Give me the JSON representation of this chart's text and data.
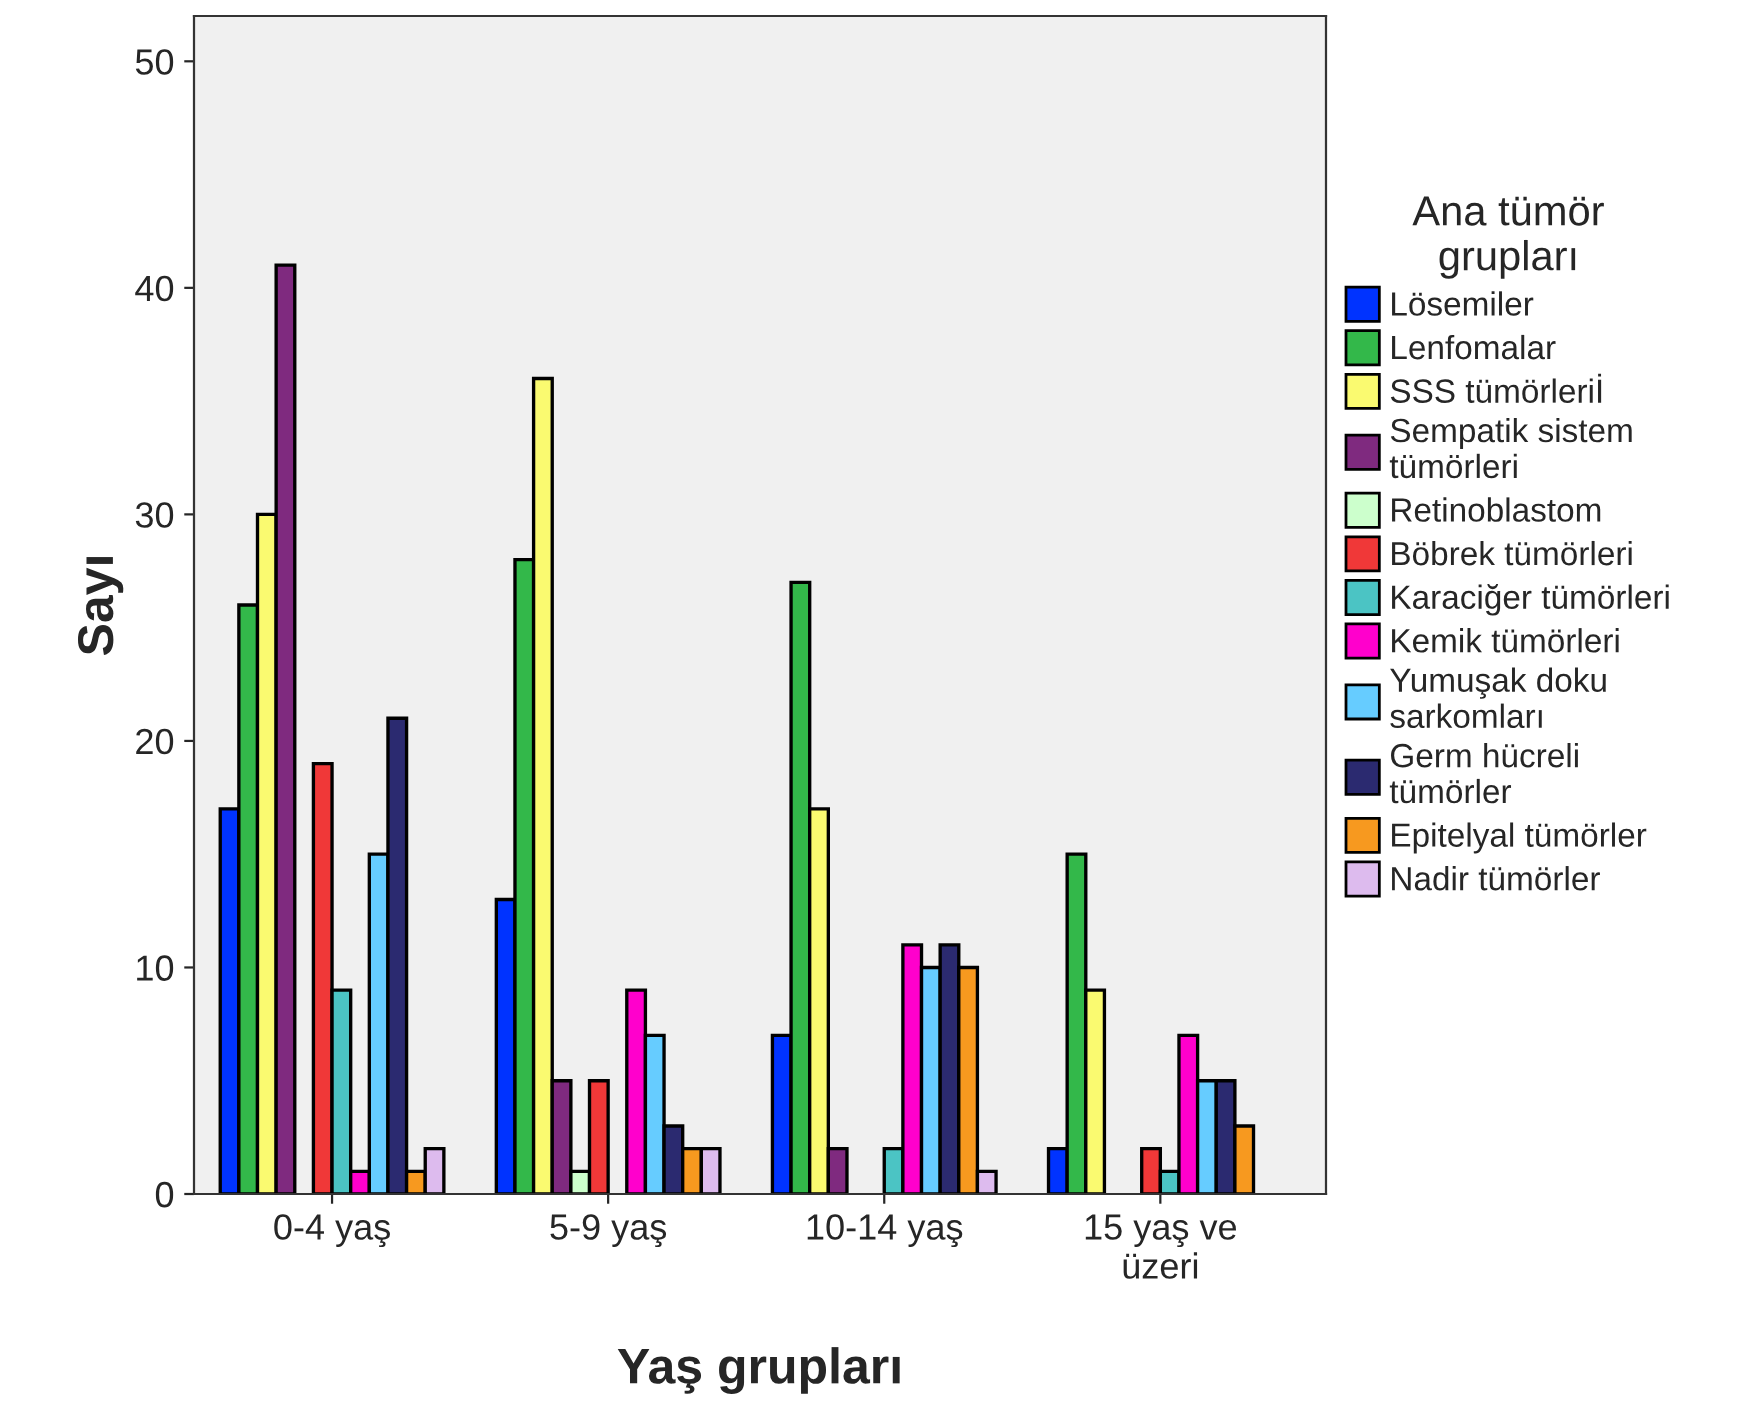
{
  "chart_data": {
    "type": "bar",
    "xlabel": "Yaş grupları",
    "ylabel": "Sayı",
    "legend_title": "Ana tümör\ngrupları",
    "categories": [
      "0-4 yaş",
      "5-9 yaş",
      "10-14 yaş",
      "15 yaş ve\nüzeri"
    ],
    "series": [
      {
        "name": "Lösemiler",
        "color": "#0033ff",
        "values": [
          17,
          13,
          7,
          2
        ]
      },
      {
        "name": "Lenfomalar",
        "color": "#33b84a",
        "values": [
          26,
          28,
          27,
          15
        ]
      },
      {
        "name": "SSS tümörleriİ",
        "color": "#fafa70",
        "values": [
          30,
          36,
          17,
          9
        ]
      },
      {
        "name": "Sempatik sistem\ntümörleri",
        "color": "#7f2a7f",
        "values": [
          41,
          5,
          2,
          0
        ]
      },
      {
        "name": "Retinoblastom",
        "color": "#ccffcc",
        "values": [
          0,
          1,
          0,
          0
        ]
      },
      {
        "name": "Böbrek tümörleri",
        "color": "#f03838",
        "values": [
          19,
          5,
          0,
          2
        ]
      },
      {
        "name": "Karaciğer tümörleri",
        "color": "#4bc4c4",
        "values": [
          9,
          0,
          2,
          1
        ]
      },
      {
        "name": "Kemik tümörleri",
        "color": "#ff00cc",
        "values": [
          1,
          9,
          11,
          7
        ]
      },
      {
        "name": "Yumuşak doku\nsarkomları",
        "color": "#66ccff",
        "values": [
          15,
          7,
          10,
          5
        ]
      },
      {
        "name": "Germ hücreli\ntümörler",
        "color": "#2b2a70",
        "values": [
          21,
          3,
          11,
          5
        ]
      },
      {
        "name": "Epitelyal tümörler",
        "color": "#f7991f",
        "values": [
          1,
          2,
          10,
          3
        ]
      },
      {
        "name": "Nadir tümörler",
        "color": "#ddbbee",
        "values": [
          2,
          2,
          1,
          0
        ]
      }
    ],
    "ylim": [
      0,
      52
    ],
    "yticks": [
      0,
      10,
      20,
      30,
      40,
      50
    ],
    "grid": false,
    "legend": "right"
  }
}
